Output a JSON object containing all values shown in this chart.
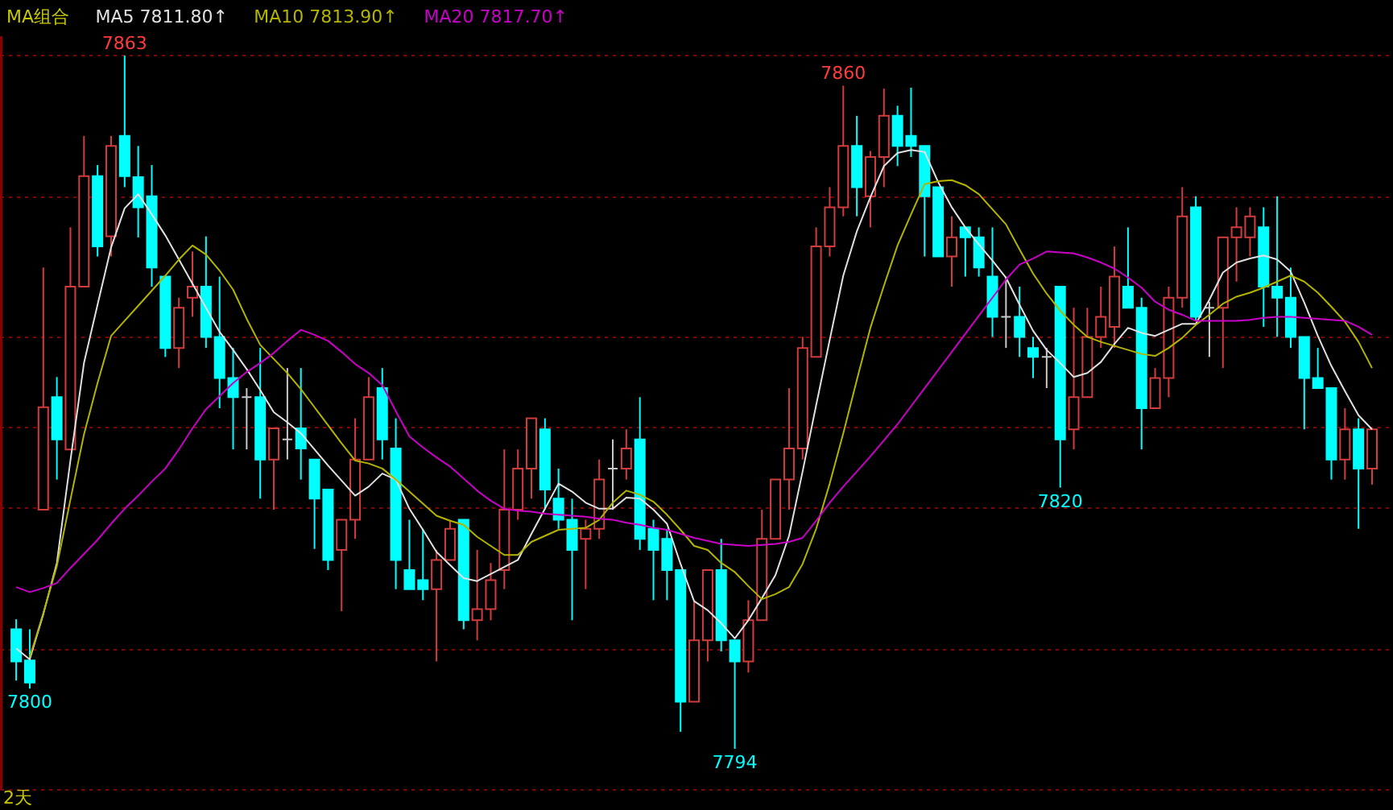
{
  "chart_data": {
    "type": "candlestick",
    "legend_title": "MA组合",
    "legend": "top left",
    "grid": "y",
    "categories": [
      null,
      null,
      null,
      null,
      null,
      null,
      null,
      null,
      null,
      null,
      null,
      null,
      null,
      null,
      null,
      null,
      null,
      null,
      null,
      null,
      null,
      null,
      null,
      null,
      null,
      null,
      null,
      null,
      null,
      null,
      null,
      null,
      null,
      null,
      null,
      null,
      null,
      null,
      null,
      null,
      null,
      null,
      null,
      null,
      null,
      null,
      null,
      null,
      null,
      null,
      null,
      null,
      null,
      null,
      null,
      null,
      null,
      null,
      null,
      null,
      null,
      null,
      null,
      null,
      null,
      null,
      null,
      null,
      null,
      null,
      null,
      null,
      null,
      null,
      null,
      null,
      null,
      null,
      null,
      null,
      null,
      null,
      null,
      null,
      null,
      null,
      null,
      null,
      null,
      null,
      null,
      null,
      null,
      null,
      null,
      null,
      null,
      null,
      null,
      null,
      null
    ],
    "ylim": [
      7790,
      7865
    ],
    "yticks": [
      {
        "value": 7790,
        "label": null
      },
      {
        "value": 7804,
        "label": null
      },
      {
        "value": 7818,
        "label": null
      },
      {
        "value": 7826,
        "label": null
      },
      {
        "value": 7835,
        "label": null
      },
      {
        "value": 7849,
        "label": null
      },
      {
        "value": 7863,
        "label": null
      }
    ],
    "ohlc": [
      [
        7805.9,
        7806.9,
        7800.8,
        7802.7
      ],
      [
        7802.8,
        7805.9,
        7800,
        7800.6
      ],
      [
        7817.8,
        7841.9,
        7817.8,
        7828.0
      ],
      [
        7829.0,
        7831.0,
        7820.8,
        7824.8
      ],
      [
        7823.8,
        7845.9,
        7823.8,
        7840.0
      ],
      [
        7840.0,
        7855.0,
        7840.0,
        7851.0
      ],
      [
        7851.0,
        7852.1,
        7843.0,
        7844.0
      ],
      [
        7845.0,
        7855.0,
        7843.0,
        7854.0
      ],
      [
        7855.0,
        7863,
        7849.9,
        7851.0
      ],
      [
        7850.9,
        7854.0,
        7844.9,
        7847.9
      ],
      [
        7849.0,
        7852.1,
        7840.0,
        7841.9
      ],
      [
        7841.0,
        7841.0,
        7833.0,
        7833.9
      ],
      [
        7833.9,
        7838.9,
        7831.9,
        7837.9
      ],
      [
        7838.9,
        7843.5,
        7837.0,
        7840.0
      ],
      [
        7840.0,
        7845.0,
        7833.9,
        7835.0
      ],
      [
        7835.0,
        7841.0,
        7827.9,
        7830.9
      ],
      [
        7830.9,
        7833.9,
        7823.8,
        7829.0
      ],
      [
        7829.0,
        7829.9,
        7823.8,
        7829.0
      ],
      [
        7829.0,
        7833.9,
        7818.9,
        7822.8
      ],
      [
        7822.8,
        7825.9,
        7817.8,
        7825.9
      ],
      [
        7824.8,
        7831.9,
        7822.8,
        7824.8
      ],
      [
        7825.9,
        7831.9,
        7820.8,
        7823.9
      ],
      [
        7822.8,
        7822.8,
        7813.9,
        7818.9
      ],
      [
        7819.8,
        7819.8,
        7811.8,
        7812.8
      ],
      [
        7813.8,
        7816.8,
        7807.7,
        7816.8
      ],
      [
        7816.8,
        7826.9,
        7814.9,
        7822.8
      ],
      [
        7822.8,
        7831.0,
        7822.8,
        7829.0
      ],
      [
        7829.9,
        7831.9,
        7822.8,
        7824.8
      ],
      [
        7823.9,
        7826.9,
        7809.9,
        7812.8
      ],
      [
        7811.8,
        7816.8,
        7809.9,
        7809.9
      ],
      [
        7810.8,
        7815.9,
        7808.8,
        7809.9
      ],
      [
        7809.9,
        7813.8,
        7802.7,
        7812.8
      ],
      [
        7812.8,
        7816.8,
        7812.8,
        7815.9
      ],
      [
        7816.8,
        7816.8,
        7805.9,
        7806.8
      ],
      [
        7806.8,
        7813.8,
        7804.8,
        7807.9
      ],
      [
        7807.9,
        7812.5,
        7806.8,
        7810.8
      ],
      [
        7811.8,
        7823.8,
        7809.9,
        7817.8
      ],
      [
        7817.8,
        7823.8,
        7816.8,
        7821.9
      ],
      [
        7821.9,
        7826.9,
        7818.9,
        7826.9
      ],
      [
        7825.8,
        7826.9,
        7817.8,
        7819.8
      ],
      [
        7818.9,
        7821.9,
        7815.9,
        7816.8
      ],
      [
        7816.8,
        7818.9,
        7806.8,
        7813.8
      ],
      [
        7814.9,
        7816.8,
        7809.9,
        7815.9
      ],
      [
        7815.9,
        7822.8,
        7814.9,
        7820.8
      ],
      [
        7821.9,
        7824.8,
        7817.8,
        7821.9
      ],
      [
        7821.9,
        7825.8,
        7820.8,
        7823.9
      ],
      [
        7824.8,
        7829.0,
        7813.8,
        7814.9
      ],
      [
        7815.9,
        7816.8,
        7808.8,
        7813.8
      ],
      [
        7814.9,
        7815.9,
        7808.8,
        7811.8
      ],
      [
        7811.8,
        7811.8,
        7795.7,
        7798.7
      ],
      [
        7798.7,
        7808.8,
        7798.7,
        7804.8
      ],
      [
        7804.8,
        7811.8,
        7802.7,
        7811.8
      ],
      [
        7811.8,
        7814.9,
        7803.7,
        7804.8
      ],
      [
        7804.8,
        7804.8,
        7794,
        7802.7
      ],
      [
        7802.7,
        7808.8,
        7801.6,
        7806.8
      ],
      [
        7806.8,
        7817.8,
        7806.8,
        7814.9
      ],
      [
        7814.9,
        7820.8,
        7814.9,
        7820.8
      ],
      [
        7820.8,
        7829.9,
        7817.8,
        7823.9
      ],
      [
        7823.9,
        7835.0,
        7822.8,
        7833.9
      ],
      [
        7833.0,
        7845.9,
        7833.0,
        7844.0
      ],
      [
        7844.0,
        7849.9,
        7843.0,
        7847.9
      ],
      [
        7847.9,
        7860,
        7847.0,
        7854.0
      ],
      [
        7854.0,
        7857.0,
        7847.0,
        7849.9
      ],
      [
        7849.0,
        7853.5,
        7845.9,
        7852.9
      ],
      [
        7852.9,
        7859.7,
        7849.9,
        7857.0
      ],
      [
        7857.0,
        7858.0,
        7852.0,
        7854.0
      ],
      [
        7855.0,
        7859.8,
        7852.9,
        7854.0
      ],
      [
        7854.0,
        7854.0,
        7843.0,
        7849.0
      ],
      [
        7849.9,
        7849.9,
        7843.0,
        7843.0
      ],
      [
        7843.0,
        7847.0,
        7840.0,
        7844.9
      ],
      [
        7845.9,
        7845.9,
        7841.0,
        7844.9
      ],
      [
        7844.9,
        7845.9,
        7841.0,
        7841.9
      ],
      [
        7841.0,
        7845.9,
        7835.0,
        7837.0
      ],
      [
        7837.0,
        7841.0,
        7833.9,
        7837.0
      ],
      [
        7837.0,
        7840.0,
        7833.0,
        7835.0
      ],
      [
        7833.9,
        7835.0,
        7830.9,
        7833.0
      ],
      [
        7833.0,
        7833.9,
        7829.9,
        7833.0
      ],
      [
        7840.0,
        7840.0,
        7820,
        7824.8
      ],
      [
        7825.8,
        7837.9,
        7823.8,
        7829.0
      ],
      [
        7829.0,
        7837.9,
        7829.0,
        7835.0
      ],
      [
        7835.0,
        7840.0,
        7833.9,
        7837.0
      ],
      [
        7836.0,
        7844.0,
        7833.9,
        7841.0
      ],
      [
        7840.0,
        7845.9,
        7837.9,
        7837.9
      ],
      [
        7837.9,
        7838.9,
        7823.8,
        7827.9
      ],
      [
        7827.9,
        7831.9,
        7827.9,
        7830.9
      ],
      [
        7830.9,
        7840.0,
        7829.0,
        7838.9
      ],
      [
        7838.9,
        7849.9,
        7837.9,
        7847.0
      ],
      [
        7847.9,
        7849.0,
        7836.6,
        7837.0
      ],
      [
        7837.9,
        7838.5,
        7833.0,
        7837.9
      ],
      [
        7837.9,
        7844.9,
        7831.9,
        7844.9
      ],
      [
        7844.9,
        7847.9,
        7840.5,
        7845.9
      ],
      [
        7844.9,
        7847.9,
        7843.0,
        7847.0
      ],
      [
        7845.9,
        7847.9,
        7836.0,
        7840.0
      ],
      [
        7840.0,
        7849.0,
        7835.0,
        7838.9
      ],
      [
        7838.9,
        7841.9,
        7833.9,
        7835.0
      ],
      [
        7835.0,
        7835.0,
        7825.8,
        7830.9
      ],
      [
        7830.9,
        7833.9,
        7829.9,
        7829.9
      ],
      [
        7829.9,
        7829.9,
        7820.8,
        7822.8
      ],
      [
        7822.8,
        7827.9,
        7820.8,
        7825.8
      ],
      [
        7825.8,
        7826.9,
        7815.9,
        7821.9
      ],
      [
        7821.9,
        7825.8,
        7820.3,
        7825.8
      ]
    ],
    "colors": [
      "#00ffff",
      "#00ffff",
      "#d23c3c",
      "#00ffff",
      "#d23c3c",
      "#d23c3c",
      "#00ffff",
      "#d23c3c",
      "#00ffff",
      "#00ffff",
      "#00ffff",
      "#00ffff",
      "#d23c3c",
      "#d23c3c",
      "#00ffff",
      "#00ffff",
      "#00ffff",
      "#c8c8c8",
      "#00ffff",
      "#d23c3c",
      "#c8c8c8",
      "#00ffff",
      "#00ffff",
      "#00ffff",
      "#d23c3c",
      "#d23c3c",
      "#d23c3c",
      "#00ffff",
      "#00ffff",
      "#00ffff",
      "#00ffff",
      "#d23c3c",
      "#d23c3c",
      "#00ffff",
      "#d23c3c",
      "#d23c3c",
      "#d23c3c",
      "#d23c3c",
      "#d23c3c",
      "#00ffff",
      "#00ffff",
      "#00ffff",
      "#d23c3c",
      "#d23c3c",
      "#c8c8c8",
      "#d23c3c",
      "#00ffff",
      "#00ffff",
      "#00ffff",
      "#00ffff",
      "#d23c3c",
      "#d23c3c",
      "#00ffff",
      "#00ffff",
      "#d23c3c",
      "#d23c3c",
      "#d23c3c",
      "#d23c3c",
      "#d23c3c",
      "#d23c3c",
      "#d23c3c",
      "#d23c3c",
      "#00ffff",
      "#d23c3c",
      "#d23c3c",
      "#00ffff",
      "#00ffff",
      "#00ffff",
      "#00ffff",
      "#d23c3c",
      "#00ffff",
      "#00ffff",
      "#00ffff",
      "#c8c8c8",
      "#00ffff",
      "#00ffff",
      "#c8c8c8",
      "#00ffff",
      "#d23c3c",
      "#d23c3c",
      "#d23c3c",
      "#d23c3c",
      "#00ffff",
      "#00ffff",
      "#d23c3c",
      "#d23c3c",
      "#d23c3c",
      "#00ffff",
      "#c8c8c8",
      "#d23c3c",
      "#d23c3c",
      "#d23c3c",
      "#00ffff",
      "#00ffff",
      "#00ffff",
      "#00ffff",
      "#00ffff",
      "#00ffff",
      "#d23c3c",
      "#00ffff",
      "#d23c3c"
    ],
    "series": [
      {
        "name": "MA5 7811.80↑",
        "type": "line",
        "line_style": "solid",
        "color": "#e0e0e0",
        "values": [
          7804.0,
          7802.9,
          7807.4,
          7812.5,
          7822.7,
          7832.4,
          7838.2,
          7843.9,
          7847.8,
          7849.2,
          7847.2,
          7845.1,
          7842.7,
          7840.3,
          7837.9,
          7835.5,
          7833.7,
          7831.8,
          7829.7,
          7827.5,
          7826.5,
          7825.4,
          7823.8,
          7822.2,
          7820.7,
          7819.2,
          7820.1,
          7821.4,
          7820.8,
          7817.9,
          7815.8,
          7813.6,
          7812.3,
          7811.0,
          7810.7,
          7811.4,
          7812.1,
          7812.8,
          7815.4,
          7817.9,
          7820.4,
          7819.6,
          7818.5,
          7817.9,
          7817.9,
          7819.0,
          7818.9,
          7817.8,
          7816.4,
          7812.4,
          7808.7,
          7807.8,
          7806.5,
          7805.0,
          7806.8,
          7809.0,
          7811.3,
          7815.2,
          7821.6,
          7828.2,
          7834.7,
          7841.1,
          7845.5,
          7848.9,
          7852.0,
          7853.3,
          7853.6,
          7853.4,
          7850.4,
          7847.9,
          7845.9,
          7844.2,
          7842.6,
          7840.9,
          7838.2,
          7835.6,
          7833.7,
          7832.4,
          7831.0,
          7831.4,
          7832.5,
          7834.3,
          7835.9,
          7835.4,
          7835.1,
          7835.7,
          7836.3,
          7836.3,
          7838.7,
          7841.4,
          7842.4,
          7842.8,
          7843.1,
          7842.7,
          7841.5,
          7838.4,
          7835.1,
          7832.1,
          7829.6,
          7827.2,
          7825.8
        ]
      },
      {
        "name": "MA10 7813.90↑",
        "type": "line",
        "line_style": "solid",
        "color": "#b4b400",
        "values": [
          null,
          7803.1,
          7807.5,
          7812.2,
          7818.8,
          7825.3,
          7830.4,
          7835.1,
          7836.6,
          7838.1,
          7839.6,
          7841.1,
          7842.7,
          7844.1,
          7843.2,
          7841.6,
          7839.7,
          7836.8,
          7834.2,
          7832.8,
          7831.4,
          7829.8,
          7828.0,
          7826.2,
          7824.4,
          7822.7,
          7822.4,
          7821.9,
          7820.8,
          7819.6,
          7818.4,
          7817.2,
          7816.7,
          7816.3,
          7815.1,
          7814.2,
          7813.3,
          7813.3,
          7814.6,
          7815.2,
          7815.8,
          7815.9,
          7816.0,
          7816.8,
          7818.5,
          7819.7,
          7819.3,
          7818.6,
          7817.3,
          7815.8,
          7814.2,
          7813.8,
          7812.5,
          7811.6,
          7810.2,
          7808.9,
          7809.4,
          7810.1,
          7812.4,
          7815.9,
          7820.4,
          7825.4,
          7830.7,
          7835.9,
          7840.1,
          7844.1,
          7847.2,
          7850.2,
          7850.5,
          7850.6,
          7850.1,
          7849.2,
          7847.7,
          7846.2,
          7843.7,
          7841.3,
          7839.3,
          7837.6,
          7836.2,
          7835.0,
          7834.5,
          7834.1,
          7833.7,
          7833.3,
          7833.1,
          7833.9,
          7834.9,
          7836.2,
          7837.2,
          7838.3,
          7839.0,
          7839.4,
          7839.9,
          7840.5,
          7841.1,
          7840.5,
          7839.4,
          7838.0,
          7836.5,
          7834.5,
          7831.9
        ]
      },
      {
        "name": "MA20 7817.70↑",
        "type": "line",
        "line_style": "solid",
        "color": "#c800c8",
        "values": [
          7810.1,
          7809.6,
          7810.0,
          7810.5,
          7812.0,
          7813.4,
          7814.8,
          7816.4,
          7817.9,
          7819.2,
          7820.6,
          7821.9,
          7823.8,
          7825.9,
          7827.8,
          7829.1,
          7830.4,
          7831.5,
          7832.4,
          7833.4,
          7834.6,
          7835.7,
          7835.2,
          7834.6,
          7833.5,
          7832.3,
          7831.4,
          7830.2,
          7827.6,
          7825.1,
          7824.0,
          7823.0,
          7822.1,
          7820.9,
          7819.7,
          7818.7,
          7817.9,
          7817.7,
          7817.6,
          7817.4,
          7817.3,
          7817.2,
          7817.1,
          7816.9,
          7816.8,
          7816.5,
          7816.3,
          7816.0,
          7815.8,
          7815.4,
          7815.0,
          7814.7,
          7814.4,
          7814.3,
          7814.2,
          7814.3,
          7814.4,
          7814.6,
          7815.0,
          7816.7,
          7818.5,
          7820.1,
          7821.6,
          7823.1,
          7824.7,
          7826.3,
          7828.1,
          7829.9,
          7831.7,
          7833.5,
          7835.3,
          7837.1,
          7838.9,
          7840.7,
          7842.2,
          7842.8,
          7843.5,
          7843.4,
          7843.3,
          7842.9,
          7842.4,
          7841.8,
          7840.9,
          7839.9,
          7838.5,
          7837.7,
          7837.2,
          7836.6,
          7836.6,
          7836.6,
          7836.6,
          7836.7,
          7836.9,
          7837.0,
          7837.0,
          7836.9,
          7836.8,
          7836.7,
          7836.6,
          7836.0,
          7835.2
        ]
      }
    ],
    "annotations": [
      {
        "text": "7863",
        "y": 7863
      },
      {
        "text": "7860",
        "y": 7860
      },
      {
        "text": "7820",
        "y": 7820
      },
      {
        "text": "7800",
        "y": 7800
      },
      {
        "text": "7794",
        "y": 7794
      },
      "2天"
    ]
  }
}
